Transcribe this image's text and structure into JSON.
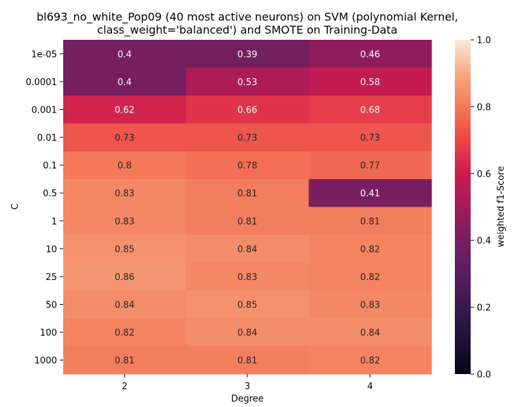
{
  "chart_data": {
    "type": "heatmap",
    "title_lines": [
      "bl693_no_white_Pop09 (40 most active neurons) on SVM (polynomial Kernel,",
      "class_weight='balanced') and SMOTE on Training-Data"
    ],
    "xlabel": "Degree",
    "ylabel": "C",
    "x_categories": [
      "2",
      "3",
      "4"
    ],
    "y_categories": [
      "1e-05",
      "0.0001",
      "0.001",
      "0.01",
      "0.1",
      "0.5",
      "1",
      "10",
      "25",
      "50",
      "100",
      "1000"
    ],
    "values": [
      [
        0.4,
        0.39,
        0.46
      ],
      [
        0.4,
        0.53,
        0.58
      ],
      [
        0.62,
        0.66,
        0.68
      ],
      [
        0.73,
        0.73,
        0.73
      ],
      [
        0.8,
        0.78,
        0.77
      ],
      [
        0.83,
        0.81,
        0.41
      ],
      [
        0.83,
        0.81,
        0.81
      ],
      [
        0.85,
        0.84,
        0.82
      ],
      [
        0.86,
        0.83,
        0.82
      ],
      [
        0.84,
        0.85,
        0.83
      ],
      [
        0.82,
        0.84,
        0.84
      ],
      [
        0.81,
        0.81,
        0.82
      ]
    ],
    "value_labels": [
      [
        "0.4",
        "0.39",
        "0.46"
      ],
      [
        "0.4",
        "0.53",
        "0.58"
      ],
      [
        "0.62",
        "0.66",
        "0.68"
      ],
      [
        "0.73",
        "0.73",
        "0.73"
      ],
      [
        "0.8",
        "0.78",
        "0.77"
      ],
      [
        "0.83",
        "0.81",
        "0.41"
      ],
      [
        "0.83",
        "0.81",
        "0.81"
      ],
      [
        "0.85",
        "0.84",
        "0.82"
      ],
      [
        "0.86",
        "0.83",
        "0.82"
      ],
      [
        "0.84",
        "0.85",
        "0.83"
      ],
      [
        "0.82",
        "0.84",
        "0.84"
      ],
      [
        "0.81",
        "0.81",
        "0.82"
      ]
    ],
    "colorbar": {
      "label": "weighted f1-Score",
      "range": [
        0.0,
        1.0
      ],
      "ticks": [
        "0.0",
        "0.2",
        "0.4",
        "0.6",
        "0.8",
        "1.0"
      ],
      "colormap": "rocket"
    },
    "grid": false,
    "legend": "colorbar-right"
  }
}
